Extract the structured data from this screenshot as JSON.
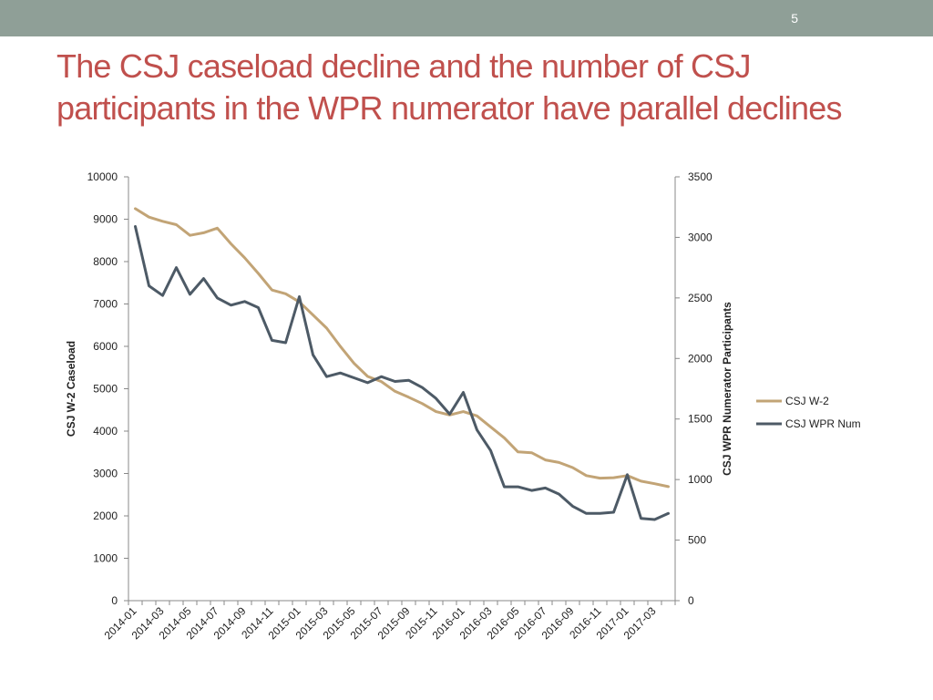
{
  "slide": {
    "number": "5",
    "title": "The CSJ caseload decline and the number of CSJ participants in the WPR numerator have parallel declines"
  },
  "colors": {
    "topbar": "#8f9f97",
    "title": "#c0504d",
    "series1": "#c2a476",
    "series2": "#4d5a66"
  },
  "chart_data": {
    "type": "line",
    "title": "",
    "legend_position": "right",
    "x_labels": [
      "2014-01",
      "2014-03",
      "2014-05",
      "2014-07",
      "2014-09",
      "2014-11",
      "2015-01",
      "2015-03",
      "2015-05",
      "2015-07",
      "2015-09",
      "2015-11",
      "2016-01",
      "2016-03",
      "2016-05",
      "2016-07",
      "2016-09",
      "2016-11",
      "2017-01",
      "2017-03"
    ],
    "x": [
      "2014-01",
      "2014-02",
      "2014-03",
      "2014-04",
      "2014-05",
      "2014-06",
      "2014-07",
      "2014-08",
      "2014-09",
      "2014-10",
      "2014-11",
      "2014-12",
      "2015-01",
      "2015-02",
      "2015-03",
      "2015-04",
      "2015-05",
      "2015-06",
      "2015-07",
      "2015-08",
      "2015-09",
      "2015-10",
      "2015-11",
      "2015-12",
      "2016-01",
      "2016-02",
      "2016-03",
      "2016-04",
      "2016-05",
      "2016-06",
      "2016-07",
      "2016-08",
      "2016-09",
      "2016-10",
      "2016-11",
      "2016-12",
      "2017-01",
      "2017-02",
      "2017-03",
      "2017-04"
    ],
    "y_left": {
      "label": "CSJ W-2 Caseload",
      "min": 0,
      "max": 10000,
      "ticks": [
        0,
        1000,
        2000,
        3000,
        4000,
        5000,
        6000,
        7000,
        8000,
        9000,
        10000
      ]
    },
    "y_right": {
      "label": "CSJ WPR Numerator Participants",
      "min": 0,
      "max": 3500,
      "ticks": [
        0,
        500,
        1000,
        1500,
        2000,
        2500,
        3000,
        3500
      ]
    },
    "series": [
      {
        "name": "CSJ W-2",
        "axis": "left",
        "values": [
          9250,
          9050,
          8950,
          8870,
          8620,
          8680,
          8790,
          8420,
          8090,
          7720,
          7330,
          7240,
          7050,
          6740,
          6430,
          6000,
          5600,
          5290,
          5170,
          4940,
          4800,
          4650,
          4460,
          4380,
          4460,
          4360,
          4100,
          3840,
          3510,
          3490,
          3320,
          3260,
          3140,
          2950,
          2890,
          2900,
          2950,
          2820,
          2760,
          2690
        ]
      },
      {
        "name": "CSJ WPR Num",
        "axis": "right",
        "values": [
          3090,
          2600,
          2520,
          2750,
          2530,
          2660,
          2500,
          2440,
          2470,
          2420,
          2150,
          2130,
          2510,
          2030,
          1850,
          1880,
          1840,
          1800,
          1850,
          1810,
          1820,
          1760,
          1670,
          1540,
          1720,
          1410,
          1240,
          940,
          940,
          910,
          930,
          880,
          780,
          720,
          720,
          730,
          1040,
          680,
          670,
          720
        ]
      }
    ]
  }
}
